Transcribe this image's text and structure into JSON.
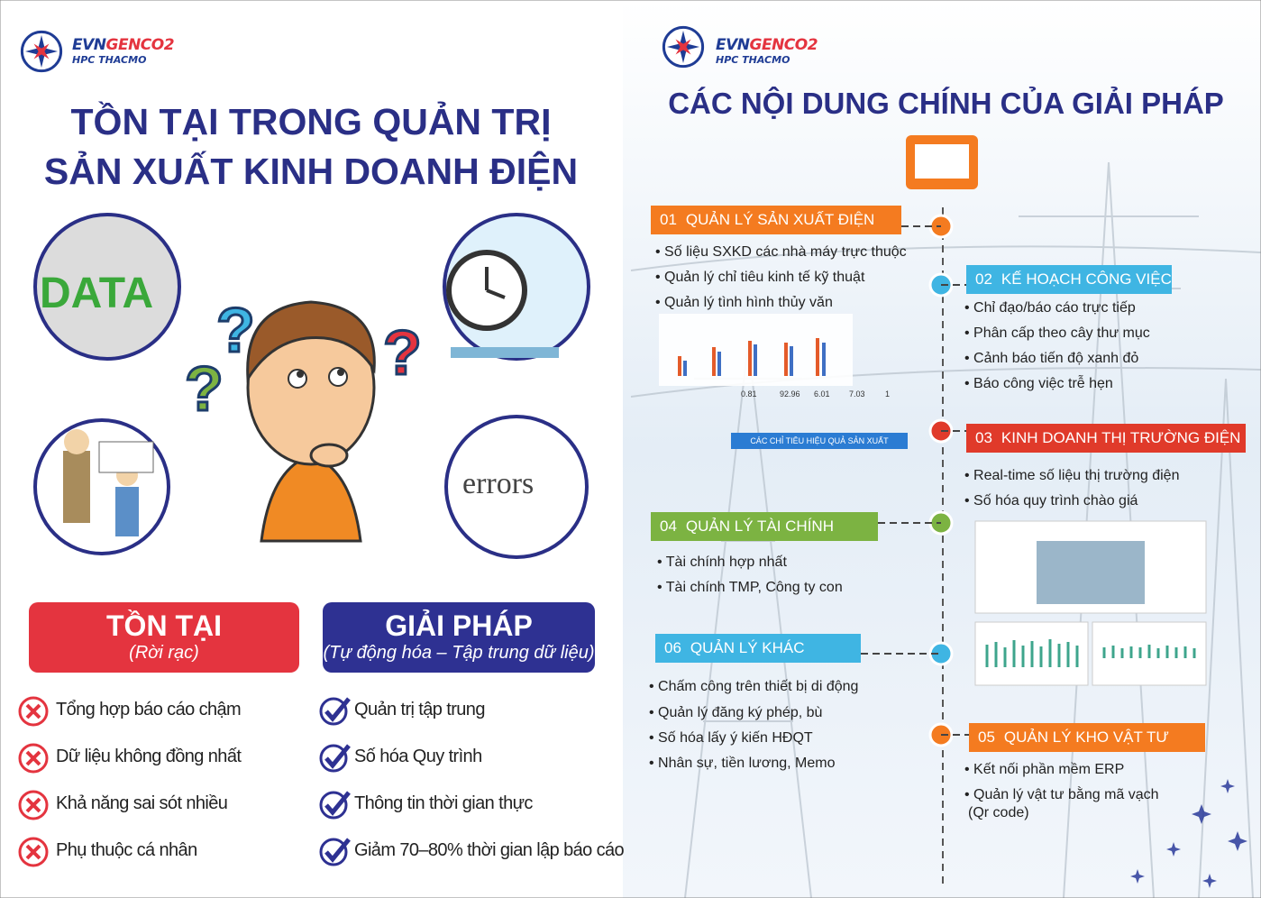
{
  "left": {
    "logo": {
      "brand": "EVN",
      "brand_accent": "GENCO2",
      "sub": "HPC THACMO"
    },
    "title": [
      "TỒN TẠI TRONG QUẢN TRỊ",
      "SẢN XUẤT KINH DOANH ĐIỆN"
    ],
    "images": {
      "data": "DATA",
      "errors": "errors"
    },
    "problems": {
      "title": "TỒN TẠI",
      "subtitle": "(Rời rạc)",
      "color": "#e4343f",
      "items": [
        "Tổng hợp báo cáo chậm",
        "Dữ liệu không đồng nhất",
        "Khả năng sai sót nhiều",
        "Phụ thuộc cá nhân"
      ]
    },
    "solutions": {
      "title": "GIẢI PHÁP",
      "subtitle": "(Tự động hóa – Tập trung dữ liệu)",
      "color": "#2e3192",
      "items": [
        "Quản trị tập trung",
        "Số hóa Quy trình",
        "Thông tin thời gian thực",
        "Giảm 70–80% thời gian lập báo cáo"
      ]
    }
  },
  "right": {
    "logo": {
      "brand": "EVN",
      "brand_accent": "GENCO2",
      "sub": "HPC THACMO"
    },
    "title": "CÁC NỘI DUNG CHÍNH CỦA GIẢI PHÁP",
    "dashboard": {
      "metrics": [
        "0.81",
        "92.96",
        "6.01",
        "7.03",
        "1"
      ],
      "caption": "CÁC CHỈ TIÊU HIỆU QUẢ SẢN XUẤT"
    },
    "sections": [
      {
        "number": "01",
        "title": "QUẢN LÝ SẢN XUẤT ĐIỆN",
        "color": "#f47b20",
        "bullets": [
          "Số liệu SXKD các nhà máy trực thuộc",
          "Quản lý chỉ tiêu kinh tế kỹ thuật",
          "Quản lý tình hình thủy văn"
        ]
      },
      {
        "number": "02",
        "title": "KẾ HOẠCH CÔNG VIỆC",
        "color": "#3fb5e3",
        "bullets": [
          "Chỉ đạo/báo cáo trực tiếp",
          "Phân cấp theo cây thư mục",
          "Cảnh báo tiến độ xanh đỏ",
          "Báo công việc trễ hẹn"
        ]
      },
      {
        "number": "03",
        "title": "KINH DOANH THỊ TRƯỜNG ĐIỆN",
        "color": "#e03a2a",
        "bullets": [
          "Real-time số liệu thị trường điện",
          "Số hóa quy trình chào giá"
        ]
      },
      {
        "number": "04",
        "title": "QUẢN LÝ TÀI CHÍNH",
        "color": "#7cb342",
        "bullets": [
          "Tài chính hợp nhất",
          "Tài chính TMP, Công ty con"
        ]
      },
      {
        "number": "06",
        "title": "QUẢN LÝ KHÁC",
        "color": "#3fb5e3",
        "bullets": [
          "Chấm công trên thiết bị di động",
          "Quản lý đăng ký phép, bù",
          "Số hóa lấy ý kiến HĐQT",
          "Nhân sự, tiền lương, Memo"
        ]
      },
      {
        "number": "05",
        "title": "QUẢN LÝ KHO VẬT TƯ",
        "color": "#f47b20",
        "bullets": [
          "Kết nối phần mềm ERP",
          "Quản lý vật tư bằng mã vạch",
          "(Qr code)"
        ]
      }
    ]
  }
}
